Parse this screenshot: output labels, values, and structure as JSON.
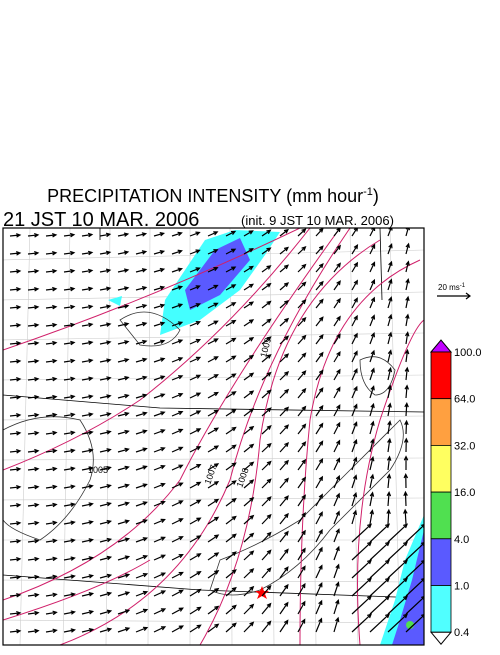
{
  "header": {
    "title": "PRECIPITATION INTENSITY (mm hour",
    "title_sup": "-1",
    "title_end": ")",
    "time": "21 JST 10 MAR. 2006",
    "init": "(init. 9 JST 10 MAR. 2006)"
  },
  "wind_scale": {
    "label": "20 ms",
    "sup": "-1"
  },
  "colorbar": {
    "levels": [
      {
        "label": "100.0",
        "color": "#ff0000"
      },
      {
        "label": "64.0",
        "color": "#ffa040"
      },
      {
        "label": "32.0",
        "color": "#ffff60"
      },
      {
        "label": "16.0",
        "color": "#50e050"
      },
      {
        "label": "4.0",
        "color": "#5a5aff"
      },
      {
        "label": "1.0",
        "color": "#50ffff"
      },
      {
        "label": "0.4",
        "color": "#ffffff"
      }
    ],
    "top_color": "#c000ff"
  },
  "isobar_labels": [
    "1005",
    "1007",
    "1008",
    "1009"
  ]
}
